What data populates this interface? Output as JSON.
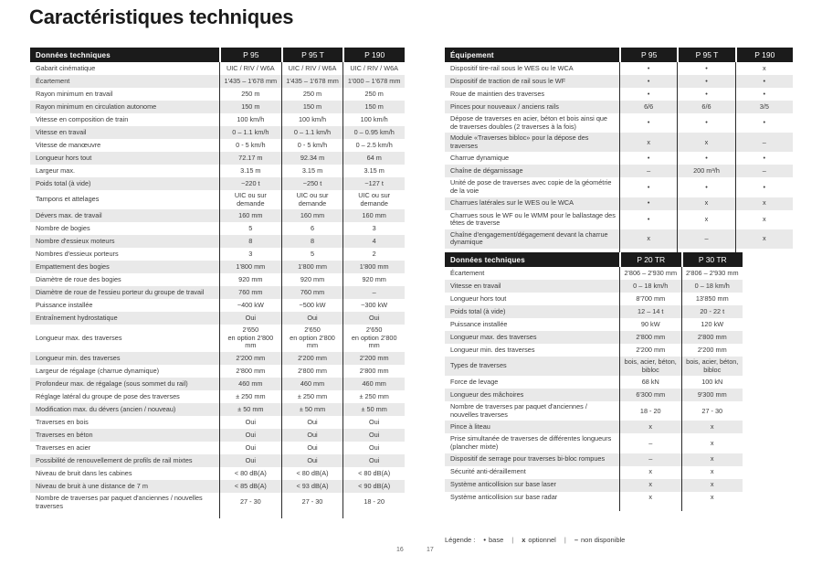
{
  "page": {
    "title": "Caractéristiques techniques",
    "page_numbers": [
      "16",
      "17"
    ],
    "legend": {
      "label": "Légende :",
      "separator": "|",
      "items": [
        {
          "symbol": "•",
          "text": "base"
        },
        {
          "symbol": "x",
          "text": "optionnel"
        },
        {
          "symbol": "–",
          "text": "non disponible"
        }
      ]
    }
  },
  "colors": {
    "header_bg": "#1b1b1b",
    "header_text": "#ffffff",
    "row_alt_bg": "#e9e9e9",
    "body_text": "#3a3a3a",
    "grid_line": "#2b2b2b",
    "title_text": "#1a1a1a",
    "page_bg": "#ffffff"
  },
  "tables": [
    {
      "id": "donnees-techniques-p",
      "header": "Données techniques",
      "columns": [
        "P 95",
        "P 95 T",
        "P 190"
      ],
      "rows": [
        {
          "label": "Gabarit cinématique",
          "values": [
            "UIC / RIV / W6A",
            "UIC / RIV / W6A",
            "UIC / RIV / W6A"
          ]
        },
        {
          "label": "Écartement",
          "values": [
            "1'435 – 1'678 mm",
            "1'435 – 1'678 mm",
            "1'000 – 1'678 mm"
          ]
        },
        {
          "label": "Rayon minimum en travail",
          "values": [
            "250 m",
            "250 m",
            "250 m"
          ]
        },
        {
          "label": "Rayon minimum en circulation autonome",
          "values": [
            "150 m",
            "150 m",
            "150 m"
          ]
        },
        {
          "label": "Vitesse en composition de train",
          "values": [
            "100 km/h",
            "100 km/h",
            "100 km/h"
          ]
        },
        {
          "label": "Vitesse en travail",
          "values": [
            "0 – 1.1 km/h",
            "0 – 1.1 km/h",
            "0 – 0.95 km/h"
          ]
        },
        {
          "label": "Vitesse de manœuvre",
          "values": [
            "0 - 5 km/h",
            "0 - 5 km/h",
            "0 – 2.5 km/h"
          ]
        },
        {
          "label": "Longueur hors tout",
          "values": [
            "72.17 m",
            "92.34 m",
            "64 m"
          ]
        },
        {
          "label": "Largeur max.",
          "values": [
            "3.15 m",
            "3.15 m",
            "3.15 m"
          ]
        },
        {
          "label": "Poids total (à vide)",
          "values": [
            "~220 t",
            "~250 t",
            "~127 t"
          ]
        },
        {
          "label": "Tampons et attelages",
          "values": [
            "UIC ou sur\ndemande",
            "UIC ou sur\ndemande",
            "UIC ou sur\ndemande"
          ]
        },
        {
          "label": "Dévers max. de travail",
          "values": [
            "160 mm",
            "160 mm",
            "160 mm"
          ]
        },
        {
          "label": "Nombre de bogies",
          "values": [
            "5",
            "6",
            "3"
          ]
        },
        {
          "label": "Nombre d'essieux moteurs",
          "values": [
            "8",
            "8",
            "4"
          ]
        },
        {
          "label": "Nombres d'essieux porteurs",
          "values": [
            "3",
            "5",
            "2"
          ]
        },
        {
          "label": "Empattement des bogies",
          "values": [
            "1'800 mm",
            "1'800 mm",
            "1'800 mm"
          ]
        },
        {
          "label": "Diamètre de roue des bogies",
          "values": [
            "920 mm",
            "920 mm",
            "920 mm"
          ]
        },
        {
          "label": "Diamètre de roue de l'essieu porteur du groupe de travail",
          "values": [
            "760 mm",
            "760 mm",
            "–"
          ]
        },
        {
          "label": "Puissance installée",
          "values": [
            "~400 kW",
            "~500 kW",
            "~300 kW"
          ]
        },
        {
          "label": "Entraînement hydrostatique",
          "values": [
            "Oui",
            "Oui",
            "Oui"
          ]
        },
        {
          "label": "Longueur max. des traverses",
          "values": [
            "2'650\nen option 2'800 mm",
            "2'650\nen option 2'800 mm",
            "2'650\nen option 2'800 mm"
          ]
        },
        {
          "label": "Longueur min. des traverses",
          "values": [
            "2'200 mm",
            "2'200 mm",
            "2'200 mm"
          ]
        },
        {
          "label": "Largeur de régalage (charrue dynamique)",
          "values": [
            "2'800 mm",
            "2'800 mm",
            "2'800 mm"
          ]
        },
        {
          "label": "Profondeur max. de régalage (sous sommet du rail)",
          "values": [
            "460 mm",
            "460 mm",
            "460 mm"
          ]
        },
        {
          "label": "Réglage latéral du groupe de pose des traverses",
          "values": [
            "± 250 mm",
            "± 250 mm",
            "± 250 mm"
          ]
        },
        {
          "label": "Modification max. du dévers (ancien / nouveau)",
          "values": [
            "± 50 mm",
            "± 50 mm",
            "± 50 mm"
          ]
        },
        {
          "label": "Traverses en bois",
          "values": [
            "Oui",
            "Oui",
            "Oui"
          ]
        },
        {
          "label": "Traverses en béton",
          "values": [
            "Oui",
            "Oui",
            "Oui"
          ]
        },
        {
          "label": "Traverses en acier",
          "values": [
            "Oui",
            "Oui",
            "Oui"
          ]
        },
        {
          "label": "Possibilité de renouvellement de profils de rail mixtes",
          "values": [
            "Oui",
            "Oui",
            "Oui"
          ]
        },
        {
          "label": "Niveau de bruit dans les cabines",
          "values": [
            "< 80 dB(A)",
            "< 80 dB(A)",
            "< 80 dB(A)"
          ]
        },
        {
          "label": "Niveau de bruit à une distance de 7 m",
          "values": [
            "< 85 dB(A)",
            "< 93 dB(A)",
            "< 90 dB(A)"
          ]
        },
        {
          "label": "Nombre de traverses par paquet d'anciennes / nouvelles traverses",
          "values": [
            "27 - 30",
            "27 - 30",
            "18 - 20"
          ]
        }
      ]
    },
    {
      "id": "equipement",
      "header": "Équipement",
      "columns": [
        "P 95",
        "P 95 T",
        "P 190"
      ],
      "rows": [
        {
          "label": "Dispositif tire-rail sous le WES ou le WCA",
          "values": [
            "•",
            "•",
            "x"
          ]
        },
        {
          "label": "Dispositif de traction de rail sous le WF",
          "values": [
            "•",
            "•",
            "•"
          ]
        },
        {
          "label": "Roue de maintien des traverses",
          "values": [
            "•",
            "•",
            "•"
          ]
        },
        {
          "label": "Pinces pour nouveaux / anciens rails",
          "values": [
            "6/6",
            "6/6",
            "3/5"
          ]
        },
        {
          "label": "Dépose de traverses en acier, béton et bois ainsi que de traverses doubles (2 traverses à la fois)",
          "values": [
            "•",
            "•",
            "•"
          ]
        },
        {
          "label": "Module «Traverses bibloc» pour la dépose des traverses",
          "values": [
            "x",
            "x",
            "–"
          ]
        },
        {
          "label": "Charrue dynamique",
          "values": [
            "•",
            "•",
            "•"
          ]
        },
        {
          "label": "Chaîne de dégarnissage",
          "values": [
            "–",
            "200 m³/h",
            "–"
          ]
        },
        {
          "label": "Unité de pose de traverses avec copie de la géométrie de la voie",
          "values": [
            "•",
            "•",
            "•"
          ]
        },
        {
          "label": "Charrues latérales sur le WES ou le WCA",
          "values": [
            "•",
            "x",
            "x"
          ]
        },
        {
          "label": "Charrues sous le WF ou le WMM pour le ballastage des têtes de traverse",
          "values": [
            "•",
            "x",
            "x"
          ]
        },
        {
          "label": "Chaîne d'engagement/dégagement devant la charrue dynamique",
          "values": [
            "x",
            "–",
            "x"
          ]
        }
      ]
    },
    {
      "id": "donnees-techniques-tr",
      "header": "Données techniques",
      "columns": [
        "P 20 TR",
        "P 30 TR"
      ],
      "rows": [
        {
          "label": "Écartement",
          "values": [
            "2'806 – 2'930 mm",
            "2'806 – 2'930 mm"
          ]
        },
        {
          "label": "Vitesse en travail",
          "values": [
            "0 – 18 km/h",
            "0 – 18 km/h"
          ]
        },
        {
          "label": "Longueur hors tout",
          "values": [
            "8'700 mm",
            "13'850 mm"
          ]
        },
        {
          "label": "Poids total (à vide)",
          "values": [
            "12 – 14 t",
            "20 - 22 t"
          ]
        },
        {
          "label": "Puissance installée",
          "values": [
            "90 kW",
            "120 kW"
          ]
        },
        {
          "label": "Longueur max. des traverses",
          "values": [
            "2'800 mm",
            "2'800 mm"
          ]
        },
        {
          "label": "Longueur min. des traverses",
          "values": [
            "2'200 mm",
            "2'200 mm"
          ]
        },
        {
          "label": "Types de traverses",
          "values": [
            "bois, acier, béton,\nbibloc",
            "bois, acier, béton,\nbibloc"
          ]
        },
        {
          "label": "Force de levage",
          "values": [
            "68 kN",
            "100 kN"
          ]
        },
        {
          "label": "Longueur des mâchoires",
          "values": [
            "6'300 mm",
            "9'300 mm"
          ]
        },
        {
          "label": "Nombre de traverses par paquet d'anciennes / nouvelles traverses",
          "values": [
            "18 - 20",
            "27 - 30"
          ]
        },
        {
          "label": "Pince à liteau",
          "values": [
            "x",
            "x"
          ]
        },
        {
          "label": "Prise simultanée de traverses de différentes longueurs (plancher mixte)",
          "values": [
            "–",
            "x"
          ]
        },
        {
          "label": "Dispositif de serrage pour traverses bi-bloc rompues",
          "values": [
            "–",
            "x"
          ]
        },
        {
          "label": "Sécurité anti-déraillement",
          "values": [
            "x",
            "x"
          ]
        },
        {
          "label": "Système anticollision sur base laser",
          "values": [
            "x",
            "x"
          ]
        },
        {
          "label": "Système anticollision sur base radar",
          "values": [
            "x",
            "x"
          ]
        }
      ]
    }
  ]
}
